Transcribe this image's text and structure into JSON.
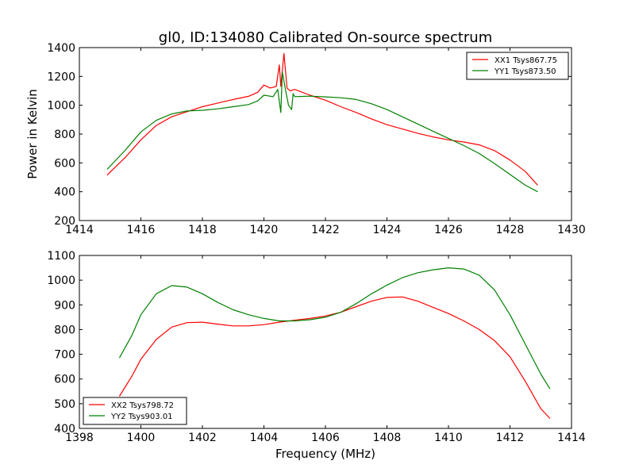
{
  "figure": {
    "title": "gl0, ID:134080 Calibrated On-source spectrum",
    "ylabel": "Power in Kelvin",
    "xlabel": "Frequency (MHz)"
  },
  "chart_data": [
    {
      "type": "line",
      "title": "gl0, ID:134080 Calibrated On-source spectrum",
      "xlabel": "",
      "ylabel": "Power in Kelvin",
      "xlim": [
        1414,
        1430
      ],
      "ylim": [
        200,
        1400
      ],
      "xticks": [
        1414,
        1416,
        1418,
        1420,
        1422,
        1424,
        1426,
        1428,
        1430
      ],
      "yticks": [
        200,
        400,
        600,
        800,
        1000,
        1200,
        1400
      ],
      "grid": false,
      "legend": "top-right",
      "series": [
        {
          "name": "XX1 Tsys867.75",
          "color": "#ff0000",
          "points": [
            [
              1414.9,
              515
            ],
            [
              1415.5,
              640
            ],
            [
              1416,
              760
            ],
            [
              1416.5,
              860
            ],
            [
              1417,
              920
            ],
            [
              1417.5,
              955
            ],
            [
              1418,
              990
            ],
            [
              1418.5,
              1015
            ],
            [
              1419,
              1040
            ],
            [
              1419.5,
              1062
            ],
            [
              1419.8,
              1090
            ],
            [
              1420.0,
              1140
            ],
            [
              1420.2,
              1120
            ],
            [
              1420.4,
              1130
            ],
            [
              1420.5,
              1280
            ],
            [
              1420.55,
              1130
            ],
            [
              1420.65,
              1360
            ],
            [
              1420.75,
              1120
            ],
            [
              1420.85,
              1100
            ],
            [
              1421,
              1110
            ],
            [
              1421.5,
              1070
            ],
            [
              1422,
              1035
            ],
            [
              1422.5,
              990
            ],
            [
              1423,
              950
            ],
            [
              1423.5,
              905
            ],
            [
              1424,
              865
            ],
            [
              1424.5,
              835
            ],
            [
              1425,
              805
            ],
            [
              1425.5,
              780
            ],
            [
              1426,
              760
            ],
            [
              1426.5,
              745
            ],
            [
              1427,
              725
            ],
            [
              1427.5,
              685
            ],
            [
              1428,
              620
            ],
            [
              1428.5,
              540
            ],
            [
              1428.9,
              445
            ]
          ]
        },
        {
          "name": "YY1 Tsys873.50",
          "color": "#008000",
          "points": [
            [
              1414.9,
              555
            ],
            [
              1415.5,
              690
            ],
            [
              1416,
              815
            ],
            [
              1416.5,
              895
            ],
            [
              1417,
              940
            ],
            [
              1417.5,
              960
            ],
            [
              1418,
              965
            ],
            [
              1418.5,
              975
            ],
            [
              1419,
              990
            ],
            [
              1419.5,
              1005
            ],
            [
              1419.8,
              1030
            ],
            [
              1420.0,
              1070
            ],
            [
              1420.3,
              1060
            ],
            [
              1420.45,
              1110
            ],
            [
              1420.55,
              950
            ],
            [
              1420.6,
              1230
            ],
            [
              1420.7,
              1110
            ],
            [
              1420.8,
              1000
            ],
            [
              1420.9,
              970
            ],
            [
              1420.95,
              1080
            ],
            [
              1421,
              1060
            ],
            [
              1421.5,
              1063
            ],
            [
              1422,
              1058
            ],
            [
              1422.5,
              1052
            ],
            [
              1423,
              1040
            ],
            [
              1423.5,
              1010
            ],
            [
              1424,
              970
            ],
            [
              1424.5,
              920
            ],
            [
              1425,
              870
            ],
            [
              1425.5,
              820
            ],
            [
              1426,
              770
            ],
            [
              1426.5,
              720
            ],
            [
              1427,
              665
            ],
            [
              1427.5,
              595
            ],
            [
              1428,
              520
            ],
            [
              1428.5,
              445
            ],
            [
              1428.9,
              400
            ]
          ]
        }
      ]
    },
    {
      "type": "line",
      "title": "",
      "xlabel": "Frequency (MHz)",
      "ylabel": "",
      "xlim": [
        1398,
        1414
      ],
      "ylim": [
        400,
        1100
      ],
      "xticks": [
        1398,
        1400,
        1402,
        1404,
        1406,
        1408,
        1410,
        1412,
        1414
      ],
      "yticks": [
        400,
        500,
        600,
        700,
        800,
        900,
        1000,
        1100
      ],
      "grid": false,
      "legend": "bottom-left",
      "series": [
        {
          "name": "XX2 Tsys798.72",
          "color": "#ff0000",
          "points": [
            [
              1399.3,
              530
            ],
            [
              1399.7,
              610
            ],
            [
              1400,
              680
            ],
            [
              1400.5,
              760
            ],
            [
              1401,
              810
            ],
            [
              1401.5,
              828
            ],
            [
              1402,
              830
            ],
            [
              1402.5,
              822
            ],
            [
              1403,
              815
            ],
            [
              1403.5,
              815
            ],
            [
              1404,
              820
            ],
            [
              1404.5,
              830
            ],
            [
              1405,
              838
            ],
            [
              1405.5,
              845
            ],
            [
              1406,
              855
            ],
            [
              1406.5,
              870
            ],
            [
              1407,
              893
            ],
            [
              1407.5,
              915
            ],
            [
              1408,
              930
            ],
            [
              1408.5,
              932
            ],
            [
              1409,
              915
            ],
            [
              1409.5,
              890
            ],
            [
              1410,
              865
            ],
            [
              1410.5,
              835
            ],
            [
              1411,
              800
            ],
            [
              1411.5,
              755
            ],
            [
              1412,
              690
            ],
            [
              1412.5,
              590
            ],
            [
              1413,
              480
            ],
            [
              1413.3,
              440
            ]
          ]
        },
        {
          "name": "YY2 Tsys903.01",
          "color": "#008000",
          "points": [
            [
              1399.3,
              685
            ],
            [
              1399.7,
              775
            ],
            [
              1400,
              860
            ],
            [
              1400.5,
              945
            ],
            [
              1401,
              978
            ],
            [
              1401.5,
              972
            ],
            [
              1402,
              945
            ],
            [
              1402.5,
              910
            ],
            [
              1403,
              880
            ],
            [
              1403.5,
              860
            ],
            [
              1404,
              845
            ],
            [
              1404.5,
              835
            ],
            [
              1405,
              835
            ],
            [
              1405.5,
              840
            ],
            [
              1406,
              850
            ],
            [
              1406.5,
              870
            ],
            [
              1407,
              905
            ],
            [
              1407.5,
              945
            ],
            [
              1408,
              980
            ],
            [
              1408.5,
              1010
            ],
            [
              1409,
              1030
            ],
            [
              1409.5,
              1042
            ],
            [
              1410,
              1050
            ],
            [
              1410.5,
              1045
            ],
            [
              1411,
              1020
            ],
            [
              1411.5,
              960
            ],
            [
              1412,
              860
            ],
            [
              1412.5,
              740
            ],
            [
              1413,
              620
            ],
            [
              1413.3,
              560
            ]
          ]
        }
      ]
    }
  ]
}
